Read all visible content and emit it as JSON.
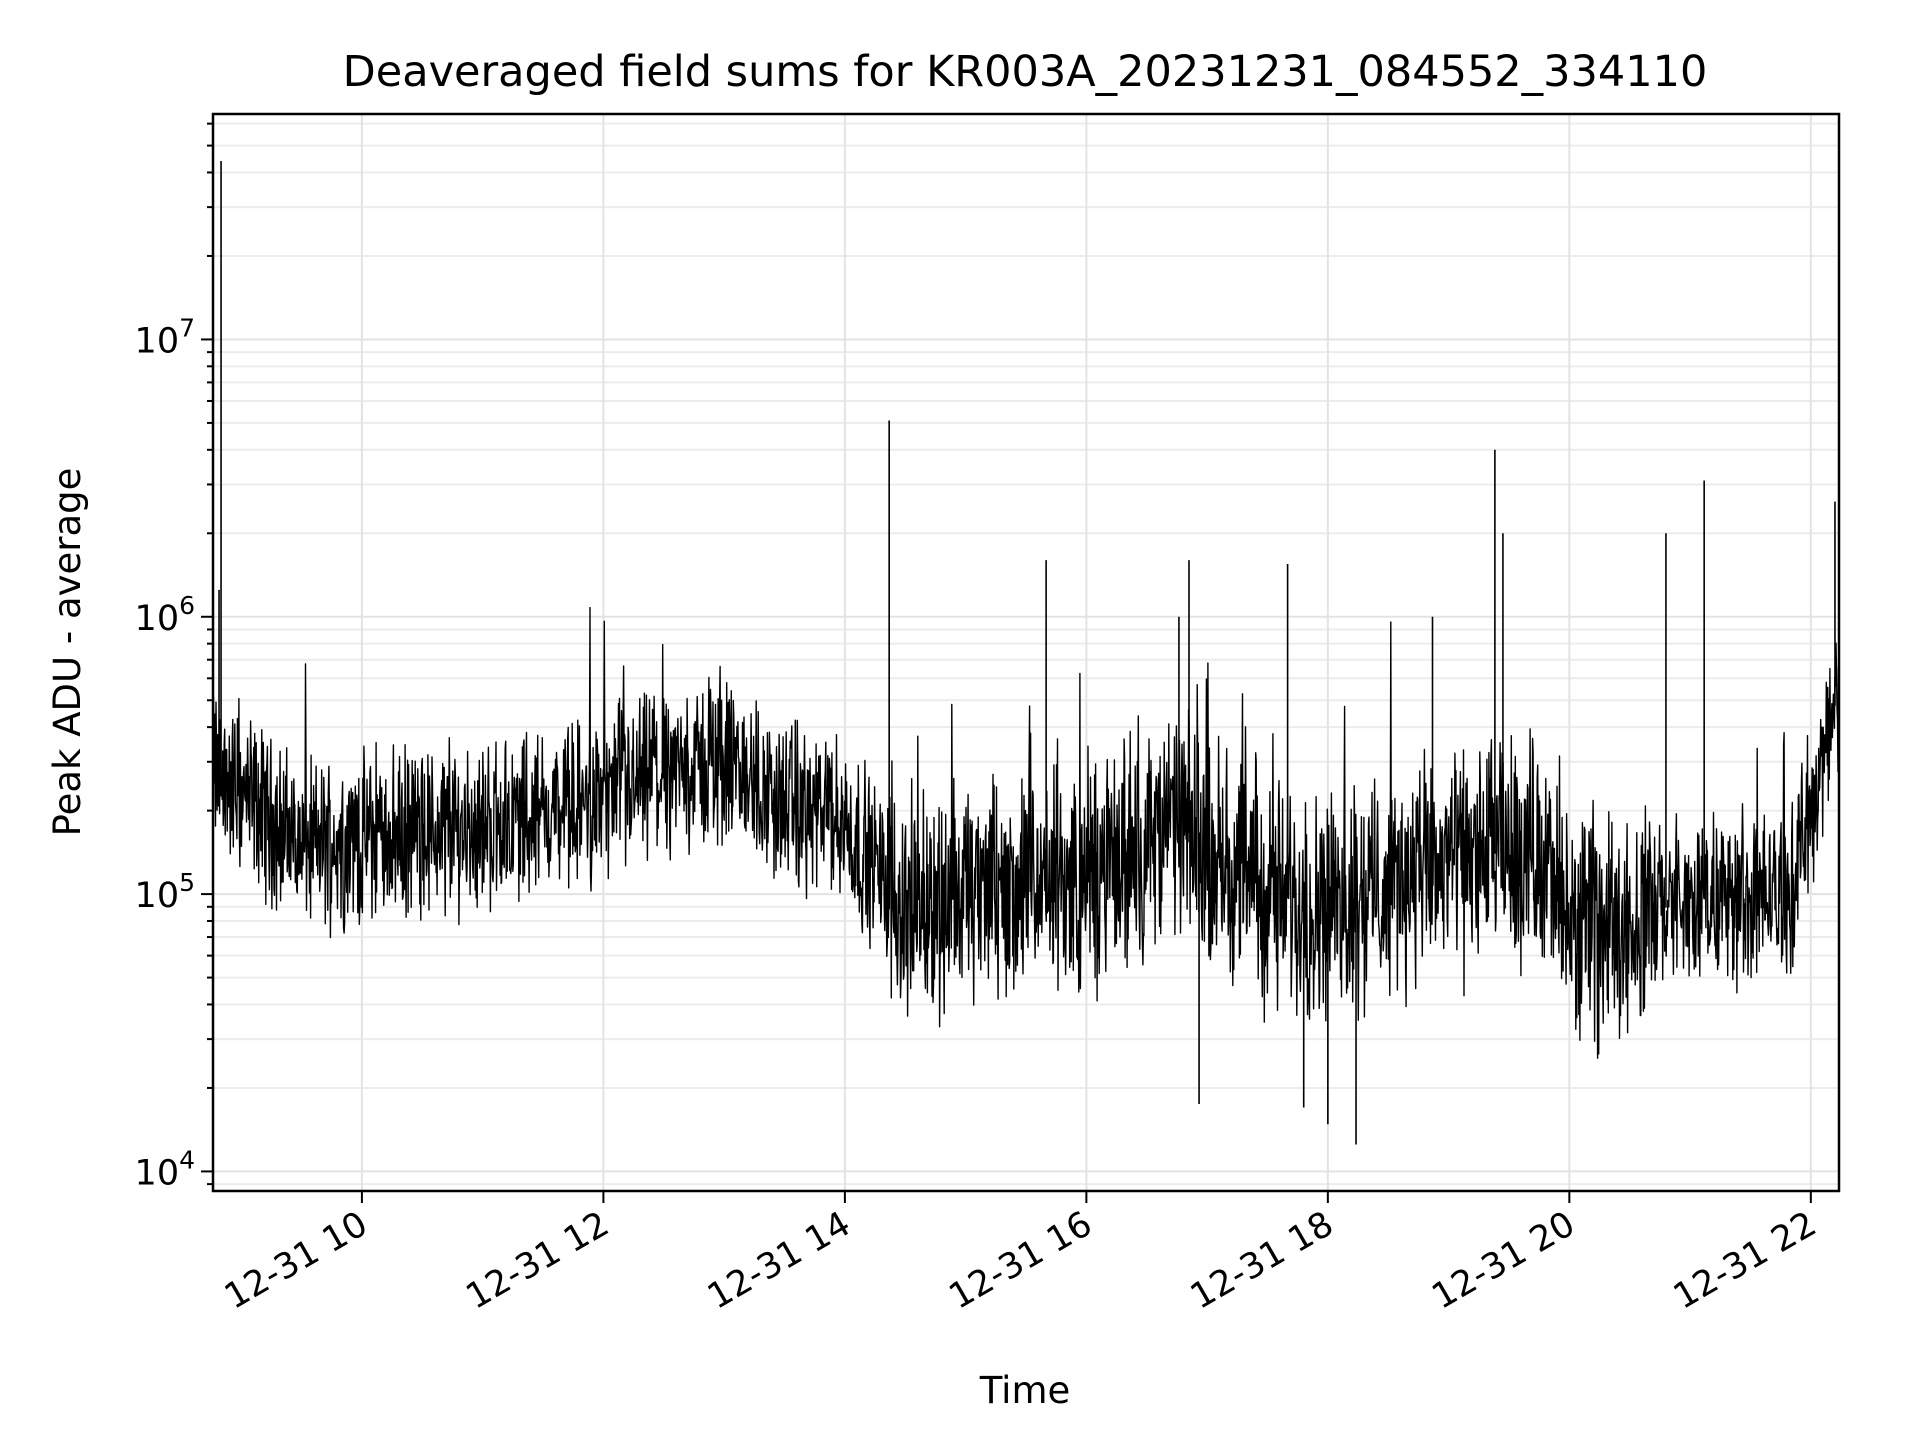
{
  "chart_data": {
    "type": "line",
    "title": "Deaveraged field sums for KR003A_20231231_084552_334110",
    "xlabel": "Time",
    "ylabel": "Peak ADU - average",
    "yscale": "log",
    "xlim": [
      "2023-12-31 08:46",
      "2023-12-31 22:14"
    ],
    "ylim": [
      8500,
      65000000
    ],
    "grid": "on, major and minor",
    "x_tick_values": [
      "2023-12-31 10:00",
      "2023-12-31 12:00",
      "2023-12-31 14:00",
      "2023-12-31 16:00",
      "2023-12-31 18:00",
      "2023-12-31 20:00",
      "2023-12-31 22:00"
    ],
    "x_tick_labels": [
      "12-31 10",
      "12-31 12",
      "12-31 14",
      "12-31 16",
      "12-31 18",
      "12-31 20",
      "12-31 22"
    ],
    "y_ticks": [
      {
        "value": 10000,
        "base": "10",
        "exp": "4"
      },
      {
        "value": 100000,
        "base": "10",
        "exp": "5"
      },
      {
        "value": 1000000,
        "base": "10",
        "exp": "6"
      },
      {
        "value": 10000000,
        "base": "10",
        "exp": "7"
      }
    ],
    "line_color": "#000000",
    "series": [
      {
        "description": "dense noisy trace; baseline profile plus notable spikes",
        "baseline": [
          {
            "x": "2023-12-31 08:46",
            "y": 280000
          },
          {
            "x": "2023-12-31 09:00",
            "y": 230000
          },
          {
            "x": "2023-12-31 09:30",
            "y": 150000
          },
          {
            "x": "2023-12-31 10:00",
            "y": 160000
          },
          {
            "x": "2023-12-31 11:00",
            "y": 175000
          },
          {
            "x": "2023-12-31 12:00",
            "y": 220000
          },
          {
            "x": "2023-12-31 12:30",
            "y": 270000
          },
          {
            "x": "2023-12-31 13:00",
            "y": 300000
          },
          {
            "x": "2023-12-31 13:30",
            "y": 210000
          },
          {
            "x": "2023-12-31 14:00",
            "y": 180000
          },
          {
            "x": "2023-12-31 14:30",
            "y": 90000
          },
          {
            "x": "2023-12-31 15:00",
            "y": 100000
          },
          {
            "x": "2023-12-31 16:00",
            "y": 110000
          },
          {
            "x": "2023-12-31 16:45",
            "y": 180000
          },
          {
            "x": "2023-12-31 17:30",
            "y": 100000
          },
          {
            "x": "2023-12-31 18:00",
            "y": 90000
          },
          {
            "x": "2023-12-31 19:00",
            "y": 130000
          },
          {
            "x": "2023-12-31 19:45",
            "y": 150000
          },
          {
            "x": "2023-12-31 20:00",
            "y": 70000
          },
          {
            "x": "2023-12-31 21:00",
            "y": 95000
          },
          {
            "x": "2023-12-31 21:50",
            "y": 100000
          },
          {
            "x": "2023-12-31 22:14",
            "y": 550000
          }
        ],
        "spikes": [
          {
            "x": "2023-12-31 08:50",
            "y": 44000000
          },
          {
            "x": "2023-12-31 08:49",
            "y": 1250000
          },
          {
            "x": "2023-12-31 14:22",
            "y": 5100000
          },
          {
            "x": "2023-12-31 15:40",
            "y": 1600000
          },
          {
            "x": "2023-12-31 16:46",
            "y": 1000000
          },
          {
            "x": "2023-12-31 16:51",
            "y": 1600000
          },
          {
            "x": "2023-12-31 17:40",
            "y": 1550000
          },
          {
            "x": "2023-12-31 18:52",
            "y": 1000000
          },
          {
            "x": "2023-12-31 19:23",
            "y": 4000000
          },
          {
            "x": "2023-12-31 19:27",
            "y": 2000000
          },
          {
            "x": "2023-12-31 20:48",
            "y": 2000000
          },
          {
            "x": "2023-12-31 21:07",
            "y": 3100000
          },
          {
            "x": "2023-12-31 22:12",
            "y": 2600000
          },
          {
            "x": "2023-12-31 18:14",
            "y": 12500
          },
          {
            "x": "2023-12-31 18:00",
            "y": 14800
          },
          {
            "x": "2023-12-31 17:48",
            "y": 17000
          },
          {
            "x": "2023-12-31 16:56",
            "y": 17500
          }
        ]
      }
    ]
  }
}
